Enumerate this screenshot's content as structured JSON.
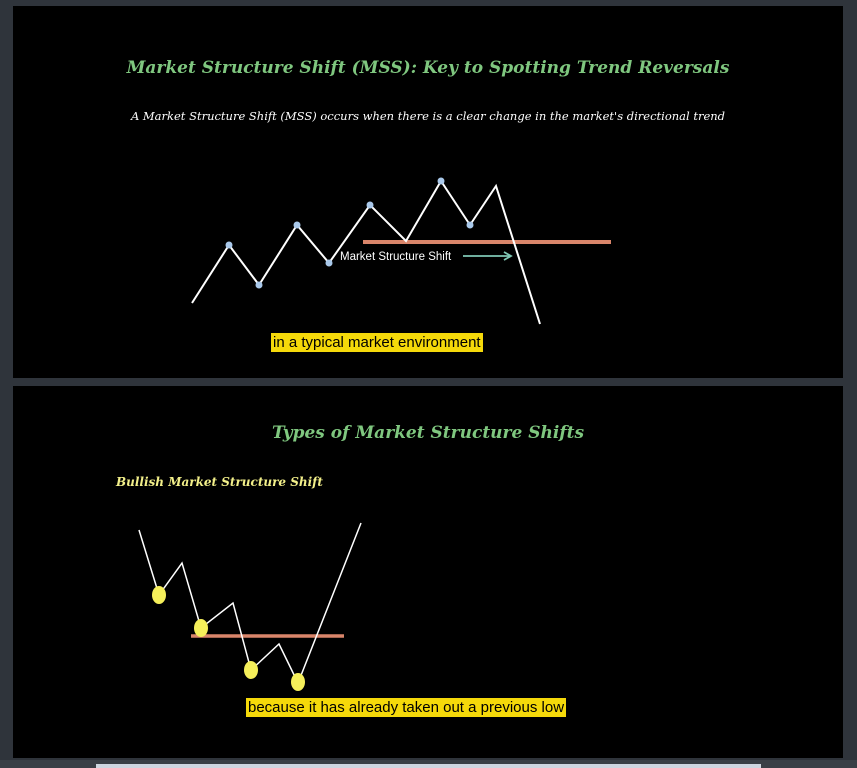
{
  "slide1": {
    "title": "Market Structure Shift (MSS): Key to Spotting Trend Reversals",
    "subtitle": "A Market Structure Shift (MSS) occurs when there is a clear change in the market's directional trend",
    "diagram_label": "Market Structure Shift",
    "caption": "in a typical market environment",
    "colors": {
      "price_line": "#ffffff",
      "swing_point": "#a9c8ea",
      "level_line": "#d9856a",
      "arrow": "#7fc7b4"
    }
  },
  "slide2": {
    "title": "Types of Market Structure Shifts",
    "section_label": "Bullish Market Structure Shift",
    "caption": "because it has already taken out a previous low",
    "colors": {
      "price_line": "#ffffff",
      "swing_point": "#f5ef5a",
      "level_line": "#d9856a"
    }
  },
  "colors": {
    "title": "#7fc77f",
    "caption_bg": "#f5d90a",
    "slide_bg": "#000000"
  }
}
